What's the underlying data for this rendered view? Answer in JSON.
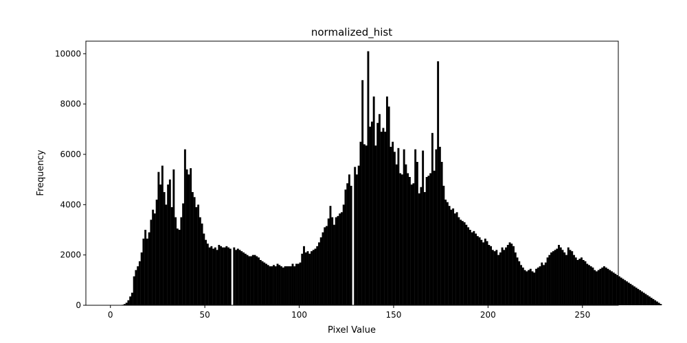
{
  "chart_data": {
    "type": "bar",
    "title": "normalized_hist",
    "xlabel": "Pixel Value",
    "ylabel": "Frequency",
    "xlim": [
      -13,
      269
    ],
    "ylim": [
      0,
      10500
    ],
    "xticks": [
      0,
      50,
      100,
      150,
      200,
      250
    ],
    "yticks": [
      0,
      2000,
      4000,
      6000,
      8000,
      10000
    ],
    "bar_color": "#000000",
    "grid": false,
    "legend": "none",
    "x_start": 0,
    "values": [
      0,
      0,
      0,
      0,
      0,
      0,
      20,
      50,
      100,
      200,
      350,
      500,
      1150,
      1400,
      1550,
      1750,
      2100,
      2650,
      3000,
      2650,
      2900,
      3400,
      3800,
      3650,
      4200,
      5300,
      4800,
      5550,
      4500,
      4000,
      4800,
      5000,
      3900,
      5400,
      3500,
      3050,
      3000,
      3500,
      4050,
      6200,
      5400,
      5200,
      5450,
      4500,
      4300,
      3900,
      4000,
      3500,
      3250,
      2850,
      2600,
      2450,
      2300,
      2350,
      2250,
      2300,
      2200,
      2400,
      2350,
      2300,
      2300,
      2350,
      2300,
      2250,
      0,
      2300,
      2200,
      2250,
      2200,
      2150,
      2100,
      2050,
      2000,
      1950,
      1950,
      2000,
      2000,
      1950,
      1900,
      1800,
      1750,
      1700,
      1650,
      1600,
      1550,
      1550,
      1600,
      1550,
      1650,
      1600,
      1550,
      1500,
      1550,
      1550,
      1550,
      1550,
      1650,
      1550,
      1650,
      1650,
      1700,
      2050,
      2350,
      2100,
      2150,
      2050,
      2150,
      2200,
      2250,
      2350,
      2500,
      2700,
      2900,
      3100,
      3150,
      3450,
      3950,
      3500,
      3200,
      3500,
      3550,
      3650,
      3700,
      4000,
      4600,
      4850,
      5200,
      4750,
      0,
      5500,
      5200,
      5550,
      6500,
      8950,
      6400,
      6350,
      10100,
      7100,
      7300,
      8300,
      6350,
      7250,
      7600,
      6900,
      7050,
      6900,
      8300,
      7900,
      6300,
      6500,
      6100,
      5600,
      6250,
      5250,
      5200,
      6200,
      5600,
      5250,
      5100,
      4800,
      4850,
      6200,
      5700,
      4450,
      4700,
      6150,
      4500,
      5100,
      5150,
      5250,
      6850,
      5350,
      6200,
      9700,
      6300,
      5700,
      4750,
      4200,
      4100,
      3950,
      3800,
      3850,
      3650,
      3700,
      3500,
      3400,
      3350,
      3300,
      3200,
      3100,
      3000,
      2900,
      2950,
      2850,
      2750,
      2700,
      2600,
      2500,
      2650,
      2550,
      2400,
      2350,
      2200,
      2150,
      2200,
      2000,
      2100,
      2300,
      2200,
      2300,
      2400,
      2500,
      2450,
      2350,
      2100,
      1900,
      1750,
      1600,
      1500,
      1400,
      1350,
      1400,
      1450,
      1350,
      1300,
      1450,
      1500,
      1550,
      1700,
      1600,
      1700,
      1900,
      2000,
      2100,
      2150,
      2200,
      2250,
      2400,
      2300,
      2200,
      2100,
      2000,
      2300,
      2200,
      2150,
      2000,
      1900,
      1800,
      1850,
      1900,
      1800,
      1750,
      1650,
      1600,
      1550,
      1500,
      1400,
      1350,
      1400,
      1450,
      1500,
      1550,
      1500,
      1450,
      1400,
      1350,
      1300,
      1250,
      1200,
      1150,
      1100,
      1050,
      1000,
      950,
      900,
      850,
      800,
      750,
      700,
      650,
      600,
      550,
      500,
      450,
      400,
      350,
      300,
      250,
      200,
      150,
      100,
      50,
      0
    ]
  }
}
